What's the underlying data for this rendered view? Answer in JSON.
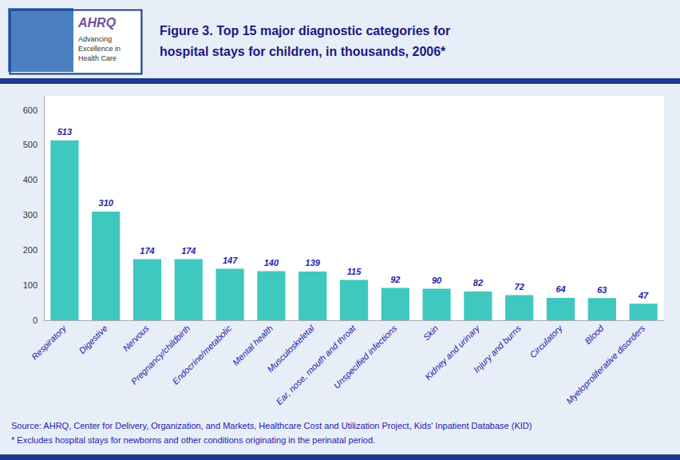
{
  "chart_data": {
    "type": "bar",
    "title": "Figure 3. Top 15 major diagnostic categories for\nhospital stays for children, in thousands, 2006*",
    "categories": [
      "Respiratory",
      "Digestive",
      "Nervous",
      "Pregnancy/childbirth",
      "Endocrine/metabolic",
      "Mental health",
      "Musculoskeletal",
      "Ear, nose, mouth and throat",
      "Unspecified infections",
      "Skin",
      "Kidney and urinary",
      "Injury and burns",
      "Circulatory",
      "Blood",
      "Myeloproliferative disorders"
    ],
    "values": [
      513,
      310,
      174,
      174,
      147,
      140,
      139,
      115,
      92,
      90,
      82,
      72,
      64,
      63,
      47
    ],
    "color": "#3EC8C0",
    "ylim": [
      0,
      640
    ],
    "yticks": [
      0,
      100,
      200,
      300,
      400,
      500,
      600
    ],
    "grid": false,
    "data_labels": true,
    "annotations": [
      "AHRQ",
      "Advancing",
      "Excellence in",
      "Health Care",
      "Source: AHRQ, Center for Delivery, Organization, and Markets, Healthcare Cost and Utilization Project, Kids' Inpatient Database (KID)",
      "* Excludes hospital stays for newborns and other conditions originating in the perinatal period."
    ]
  }
}
